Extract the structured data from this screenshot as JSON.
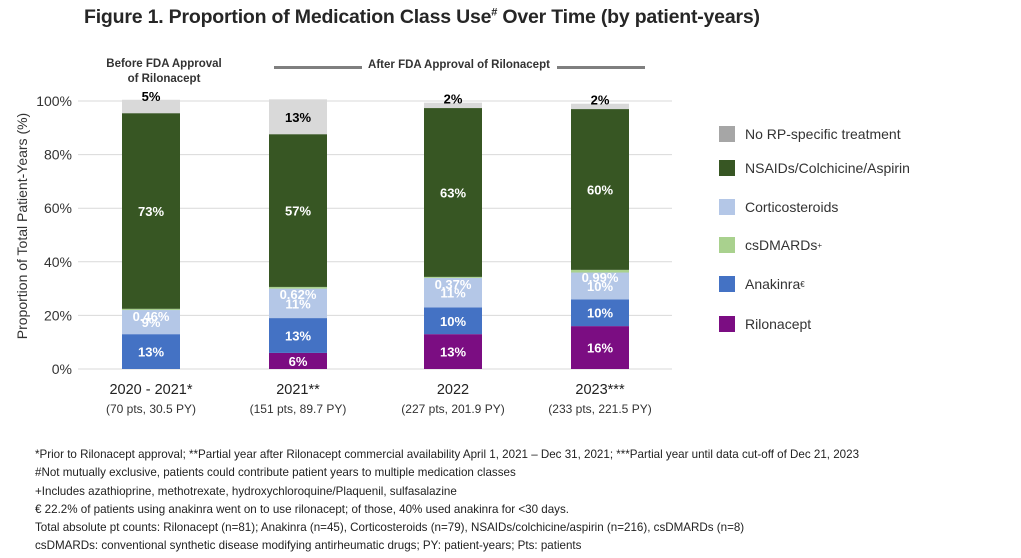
{
  "title": {
    "main": "Figure 1. Proportion of Medication Class Use",
    "superscript": "#",
    "suffix": " Over Time (by patient-years)"
  },
  "periods": {
    "before": "Before FDA Approval\nof Rilonacept",
    "before_line1": "Before FDA Approval",
    "before_line2": "of Rilonacept",
    "after": "After FDA Approval of Rilonacept"
  },
  "chart_data": {
    "type": "bar",
    "stacked": true,
    "title": "Figure 1. Proportion of Medication Class Use# Over Time (by patient-years)",
    "xlabel": "",
    "ylabel": "Proportion of Total Patient-Years (%)",
    "ylim": [
      0,
      100
    ],
    "yticks": [
      0,
      20,
      40,
      60,
      80,
      100
    ],
    "ytick_labels": [
      "0%",
      "20%",
      "40%",
      "60%",
      "80%",
      "100%"
    ],
    "grid": true,
    "legend_position": "right",
    "categories": [
      "2020 - 2021*",
      "2021**",
      "2022",
      "2023***"
    ],
    "category_sublabels": [
      "(70 pts, 30.5 PY)",
      "(151 pts, 89.7 PY)",
      "(227 pts, 201.9 PY)",
      "(233 pts, 221.5 PY)"
    ],
    "series": [
      {
        "name": "Rilonacept",
        "color": "#7b0d82",
        "values": [
          0,
          6,
          13,
          16
        ],
        "labels": [
          "",
          "6%",
          "13%",
          "16%"
        ],
        "label_color": "#ffffff"
      },
      {
        "name": "Anakinra€",
        "color": "#4472c4",
        "values": [
          13,
          13,
          10,
          10
        ],
        "labels": [
          "13%",
          "13%",
          "10%",
          "10%"
        ],
        "label_color": "#ffffff"
      },
      {
        "name": "csDMARDs+",
        "color": "#a9d18e",
        "values": [
          0,
          0,
          0,
          0
        ],
        "labels": [
          "",
          "",
          "",
          ""
        ],
        "label_color": "#ffffff"
      },
      {
        "name": "Corticosteroids",
        "color": "#b4c7e7",
        "values": [
          9,
          11,
          11,
          10
        ],
        "labels": [
          "9%",
          "11%",
          "11%",
          "10%"
        ],
        "label_color": "#ffffff"
      },
      {
        "name": "csDMARDs (top)",
        "color": "#a9d18e",
        "values": [
          0.46,
          0.62,
          0.37,
          0.99
        ],
        "labels": [
          "0.46%",
          "0.62%",
          "0.37%",
          "0.99%"
        ],
        "label_color": "#ffffff"
      },
      {
        "name": "NSAIDs/Colchicine/Aspirin",
        "color": "#375623",
        "values": [
          73,
          57,
          63,
          60
        ],
        "labels": [
          "73%",
          "57%",
          "63%",
          "60%"
        ],
        "label_color": "#ffffff"
      },
      {
        "name": "No RP-specific treatment",
        "color": "#d9d9d9",
        "values": [
          5,
          13,
          2,
          2
        ],
        "labels": [
          "5%",
          "13%",
          "2%",
          "2%"
        ],
        "label_color": "#000000"
      }
    ],
    "legend": [
      {
        "label": "No RP-specific treatment",
        "sup": "",
        "color": "#a6a6a6"
      },
      {
        "label": "NSAIDs/Colchicine/Aspirin",
        "sup": "",
        "color": "#375623"
      },
      {
        "label": "Corticosteroids",
        "sup": "",
        "color": "#b4c7e7"
      },
      {
        "label": "csDMARDs",
        "sup": "+",
        "color": "#a9d18e"
      },
      {
        "label": "Anakinra",
        "sup": "€",
        "color": "#4472c4"
      },
      {
        "label": "Rilonacept",
        "sup": "",
        "color": "#7b0d82"
      }
    ]
  },
  "footnotes": [
    "*Prior to Rilonacept approval; **Partial year after Rilonacept commercial availability April 1, 2021 – Dec 31, 2021; ***Partial year until data cut-off of Dec 21, 2023",
    "#Not mutually exclusive, patients could contribute patient years to multiple medication classes",
    "+Includes azathioprine, methotrexate, hydroxychloroquine/Plaquenil, sulfasalazine",
    "€ 22.2% of patients using anakinra went on to use rilonacept; of those, 40% used anakinra for <30 days.",
    "Total absolute pt counts: Rilonacept (n=81); Anakinra (n=45), Corticosteroids (n=79), NSAIDs/colchicine/aspirin (n=216), csDMARDs (n=8)",
    "csDMARDs: conventional synthetic disease modifying antirheumatic drugs; PY: patient-years; Pts: patients"
  ]
}
